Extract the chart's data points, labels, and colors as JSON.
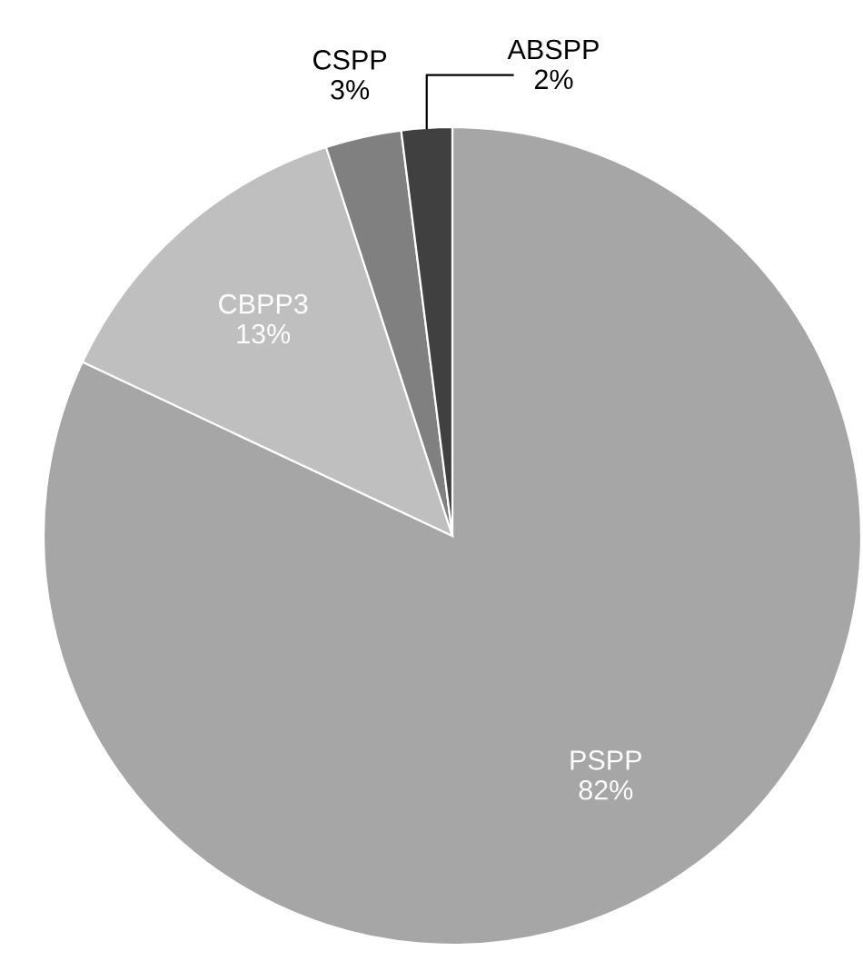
{
  "chart_data": {
    "type": "pie",
    "categories": [
      "PSPP",
      "CBPP3",
      "CSPP",
      "ABSPP"
    ],
    "values": [
      82,
      13,
      3,
      2
    ],
    "value_labels": [
      "82%",
      "13%",
      "3%",
      "2%"
    ],
    "colors": [
      "#a6a6a6",
      "#bfbfbf",
      "#808080",
      "#404040"
    ],
    "legend": false
  }
}
